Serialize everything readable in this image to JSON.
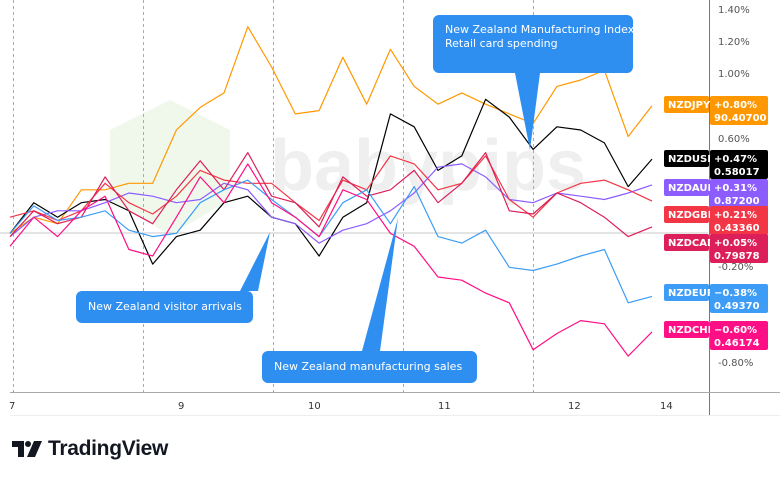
{
  "chart_data": {
    "type": "line",
    "title": "",
    "xlabel": "",
    "ylabel": "",
    "x_tick_labels": [
      "7",
      "9",
      "10",
      "11",
      "12",
      "14"
    ],
    "y_tick_labels": [
      "1.40%",
      "1.20%",
      "1.00%",
      "0.60%",
      "-0.20%",
      "-0.80%"
    ],
    "ylim": [
      -0.95,
      1.45
    ],
    "y_unit": "%",
    "grid": false,
    "zero_line": true,
    "series": [
      {
        "name": "NZDJPY",
        "color": "#ff9800",
        "change": "+0.80%",
        "price": "90.40700",
        "values": [
          0.01,
          0.11,
          0.07,
          0.28,
          0.28,
          0.32,
          0.32,
          0.65,
          0.79,
          0.88,
          1.29,
          1.04,
          0.75,
          0.77,
          1.1,
          0.81,
          1.15,
          0.92,
          0.81,
          0.88,
          0.81,
          0.75,
          0.69,
          0.92,
          0.96,
          1.02,
          0.61,
          0.8
        ]
      },
      {
        "name": "NZDUSD",
        "color": "#000000",
        "change": "+0.47%",
        "price": "0.58017",
        "values": [
          0.01,
          0.2,
          0.11,
          0.2,
          0.22,
          0.15,
          -0.18,
          -0.01,
          0.03,
          0.2,
          0.24,
          0.11,
          0.07,
          -0.13,
          0.11,
          0.2,
          0.75,
          0.67,
          0.4,
          0.49,
          0.84,
          0.73,
          0.53,
          0.67,
          0.65,
          0.57,
          0.3,
          0.47
        ]
      },
      {
        "name": "NZDAUD",
        "color": "#8c5cff",
        "change": "+0.31%",
        "price": "0.87200",
        "values": [
          -0.01,
          0.11,
          0.15,
          0.15,
          0.2,
          0.26,
          0.24,
          0.2,
          0.22,
          0.32,
          0.28,
          0.11,
          0.07,
          -0.05,
          0.03,
          0.07,
          0.15,
          0.26,
          0.42,
          0.44,
          0.36,
          0.22,
          0.2,
          0.26,
          0.24,
          0.22,
          0.26,
          0.31
        ]
      },
      {
        "name": "NZDGBP",
        "color": "#f23645",
        "change": "+0.21%",
        "price": "0.43360",
        "values": [
          0.11,
          0.15,
          0.09,
          0.15,
          0.32,
          0.2,
          0.13,
          0.24,
          0.4,
          0.34,
          0.32,
          0.32,
          0.2,
          0.09,
          0.34,
          0.28,
          0.49,
          0.44,
          0.28,
          0.32,
          0.49,
          0.22,
          0.11,
          0.26,
          0.32,
          0.34,
          0.28,
          0.21
        ]
      },
      {
        "name": "NZDCAD",
        "color": "#dc1f5a",
        "change": "+0.05%",
        "price": "0.79878",
        "values": [
          -0.01,
          0.15,
          0.07,
          0.11,
          0.36,
          0.15,
          0.07,
          0.28,
          0.46,
          0.28,
          0.51,
          0.24,
          0.2,
          0.05,
          0.36,
          0.24,
          0.28,
          0.4,
          0.2,
          0.32,
          0.51,
          0.15,
          0.13,
          0.26,
          0.2,
          0.11,
          -0.01,
          0.05
        ]
      },
      {
        "name": "NZDEUR",
        "color": "#3d9cf5",
        "change": "−0.38%",
        "price": "0.49370",
        "values": [
          0.01,
          0.18,
          0.09,
          0.11,
          0.15,
          0.03,
          -0.01,
          0.01,
          0.2,
          0.28,
          0.34,
          0.22,
          0.11,
          -0.01,
          0.2,
          0.28,
          0.07,
          0.3,
          -0.01,
          -0.05,
          0.03,
          -0.2,
          -0.22,
          -0.18,
          -0.13,
          -0.09,
          -0.42,
          -0.38
        ]
      },
      {
        "name": "NZDCHF",
        "color": "#ff0f85",
        "change": "−0.60%",
        "price": "0.46174",
        "values": [
          -0.07,
          0.11,
          -0.01,
          0.15,
          0.24,
          -0.09,
          -0.13,
          0.11,
          0.36,
          0.2,
          0.44,
          0.2,
          0.11,
          -0.01,
          0.28,
          0.22,
          0.01,
          -0.07,
          -0.26,
          -0.28,
          -0.36,
          -0.42,
          -0.71,
          -0.61,
          -0.53,
          -0.55,
          -0.75,
          -0.6
        ]
      }
    ],
    "annotations": [
      {
        "lines": [
          "New Zealand Manufacturing Index",
          "Retail card spending"
        ]
      },
      {
        "lines": [
          "New Zealand visitor arrivals"
        ]
      },
      {
        "lines": [
          "New Zealand manufacturing sales"
        ]
      }
    ],
    "callout_color": "#2f8ff0"
  },
  "watermark": "babypips",
  "brand": {
    "name": "TradingView"
  }
}
